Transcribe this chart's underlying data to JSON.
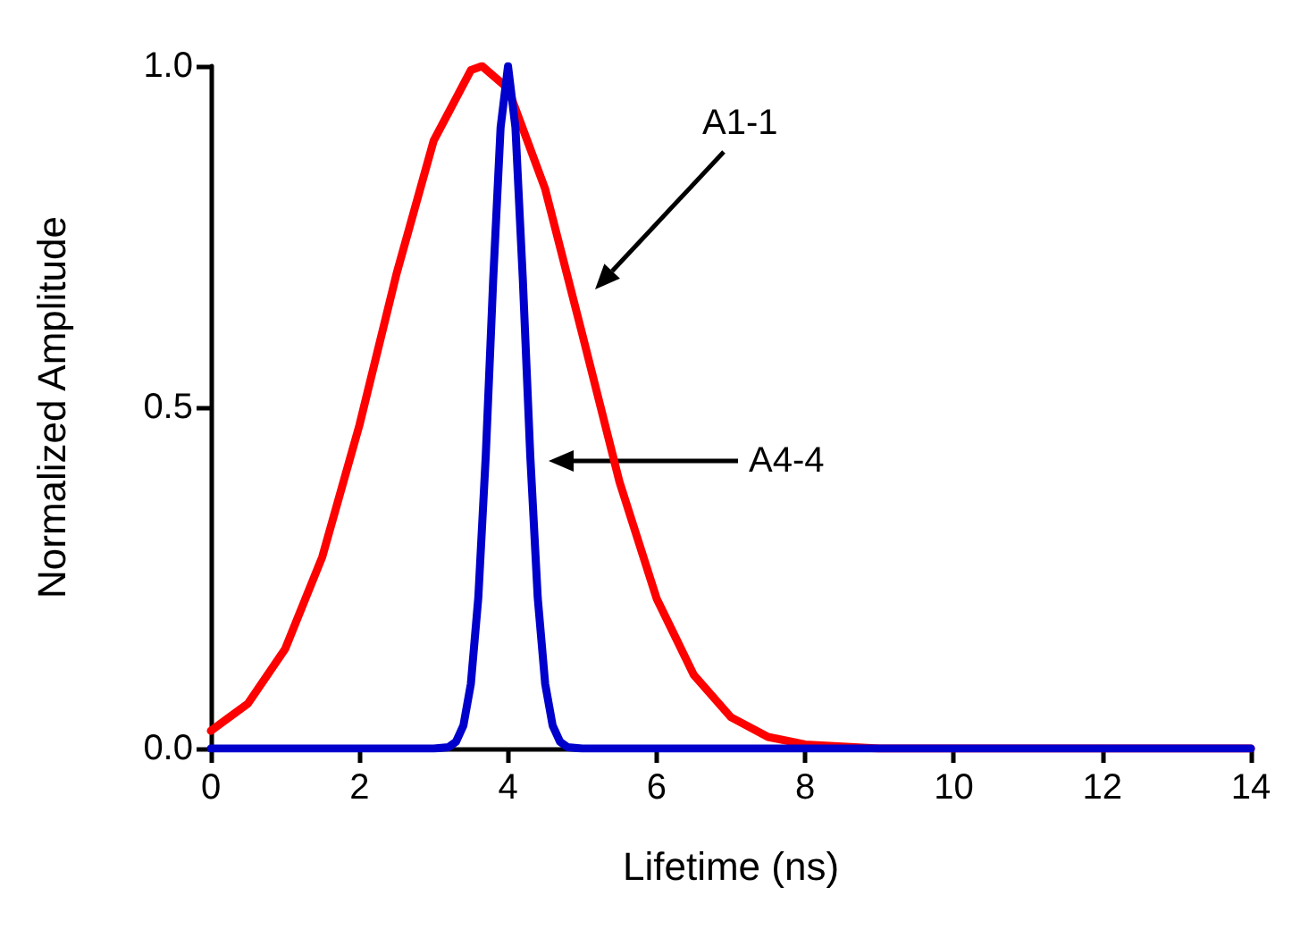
{
  "chart_data": {
    "type": "line",
    "xlabel": "Lifetime (ns)",
    "ylabel": "Normalized Amplitude",
    "xlim": [
      0,
      14
    ],
    "xticks": [
      0,
      2,
      4,
      6,
      8,
      10,
      12,
      14
    ],
    "ylim": [
      0,
      1
    ],
    "yticks": [
      {
        "value": 0,
        "label": "0.0"
      },
      {
        "value": 0.5,
        "label": "0.5"
      },
      {
        "value": 1,
        "label": "1.0"
      }
    ],
    "grid": false,
    "marker": "none",
    "line_style": "solid",
    "series": [
      {
        "color": "#ff0000",
        "x": [
          0,
          0.5,
          1,
          1.5,
          2,
          2.5,
          3,
          3.5,
          3.65,
          4,
          4.5,
          5,
          5.5,
          6,
          6.5,
          7,
          7.5,
          8,
          9,
          14
        ],
        "values": [
          0.026,
          0.066,
          0.146,
          0.281,
          0.474,
          0.696,
          0.891,
          0.994,
          1,
          0.967,
          0.82,
          0.607,
          0.391,
          0.22,
          0.108,
          0.046,
          0.017,
          0.006,
          0,
          0
        ]
      },
      {
        "color": "#0000cc",
        "x": [
          0,
          3,
          3.2,
          3.3,
          3.4,
          3.5,
          3.6,
          3.7,
          3.8,
          3.9,
          4,
          4.1,
          4.2,
          4.3,
          4.4,
          4.5,
          4.6,
          4.7,
          4.8,
          5,
          14
        ],
        "values": [
          0,
          0,
          0.002,
          0.01,
          0.034,
          0.095,
          0.221,
          0.428,
          0.686,
          0.91,
          1,
          0.91,
          0.686,
          0.428,
          0.221,
          0.095,
          0.034,
          0.01,
          0.002,
          0,
          0
        ]
      }
    ],
    "annotations": [
      "A1-1",
      "A4-4"
    ]
  }
}
